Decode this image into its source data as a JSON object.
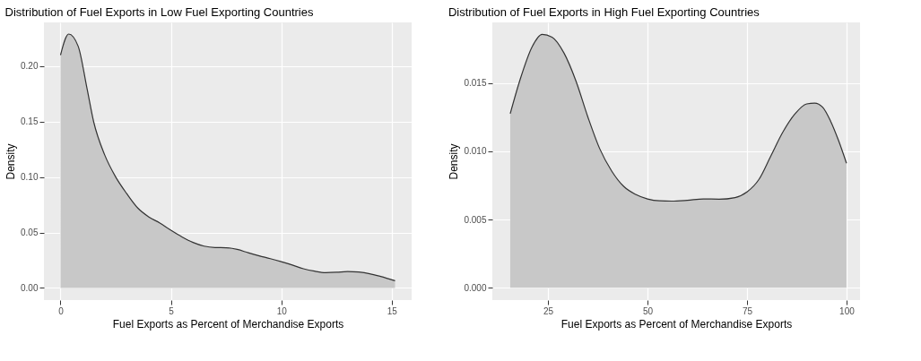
{
  "chart_data": [
    {
      "type": "area",
      "title": "Distribution of Fuel Exports in Low Fuel Exporting Countries",
      "xlabel": "Fuel Exports as Percent of Merchandise Exports",
      "ylabel": "Density",
      "grid": true,
      "legend": false,
      "x": [
        0,
        0.37,
        0.8,
        1.2,
        1.5,
        2,
        2.5,
        3,
        3.5,
        4,
        4.5,
        5,
        5.5,
        6,
        6.5,
        7,
        7.5,
        8,
        8.5,
        9,
        9.5,
        10,
        10.5,
        11,
        11.5,
        12,
        12.5,
        13,
        13.5,
        14,
        14.5,
        15.15
      ],
      "series": [
        {
          "color": "#c8c8c8",
          "values": [
            0.21,
            0.229,
            0.218,
            0.18,
            0.15,
            0.12,
            0.1,
            0.085,
            0.072,
            0.064,
            0.0585,
            0.052,
            0.046,
            0.041,
            0.0377,
            0.0364,
            0.0362,
            0.0347,
            0.0317,
            0.0289,
            0.0264,
            0.0236,
            0.0206,
            0.0173,
            0.0151,
            0.0138,
            0.0141,
            0.0148,
            0.0143,
            0.0128,
            0.0103,
            0.0065
          ]
        }
      ],
      "xlim": [
        -0.75,
        15.9
      ],
      "xticks": [
        0,
        5,
        10,
        15
      ],
      "ylim": [
        -0.011,
        0.2395
      ],
      "yticks": [
        {
          "value": 0,
          "label": "0.00"
        },
        {
          "value": 0.05,
          "label": "0.05"
        },
        {
          "value": 0.1,
          "label": "0.10"
        },
        {
          "value": 0.15,
          "label": "0.15"
        },
        {
          "value": 0.2,
          "label": "0.20"
        }
      ]
    },
    {
      "type": "area",
      "title": "Distribution of Fuel Exports in High Fuel Exporting Countries",
      "xlabel": "Fuel Exports as Percent of Merchandise Exports",
      "ylabel": "Density",
      "grid": true,
      "legend": false,
      "x": [
        15.5,
        18,
        21,
        23.5,
        26,
        29,
        32,
        35,
        38,
        41,
        44,
        47,
        50,
        53,
        56,
        60,
        64,
        68,
        72,
        75,
        78,
        81,
        84,
        87,
        90,
        92,
        94,
        96,
        98,
        100
      ],
      "series": [
        {
          "color": "#c8c8c8",
          "values": [
            0.01276,
            0.01527,
            0.01765,
            0.01856,
            0.01836,
            0.0172,
            0.01516,
            0.01252,
            0.01018,
            0.00855,
            0.00743,
            0.00684,
            0.00651,
            0.00637,
            0.00635,
            0.00641,
            0.00651,
            0.00649,
            0.00661,
            0.00702,
            0.00794,
            0.00967,
            0.0114,
            0.01272,
            0.01347,
            0.01353,
            0.01323,
            0.01221,
            0.01079,
            0.00912
          ]
        }
      ],
      "xlim": [
        11.0,
        103.4
      ],
      "xticks": [
        25,
        50,
        75,
        100
      ],
      "ylim": [
        -0.0009,
        0.01944
      ],
      "yticks": [
        {
          "value": 0,
          "label": "0.000"
        },
        {
          "value": 0.005,
          "label": "0.005"
        },
        {
          "value": 0.01,
          "label": "0.010"
        },
        {
          "value": 0.015,
          "label": "0.015"
        }
      ]
    }
  ]
}
